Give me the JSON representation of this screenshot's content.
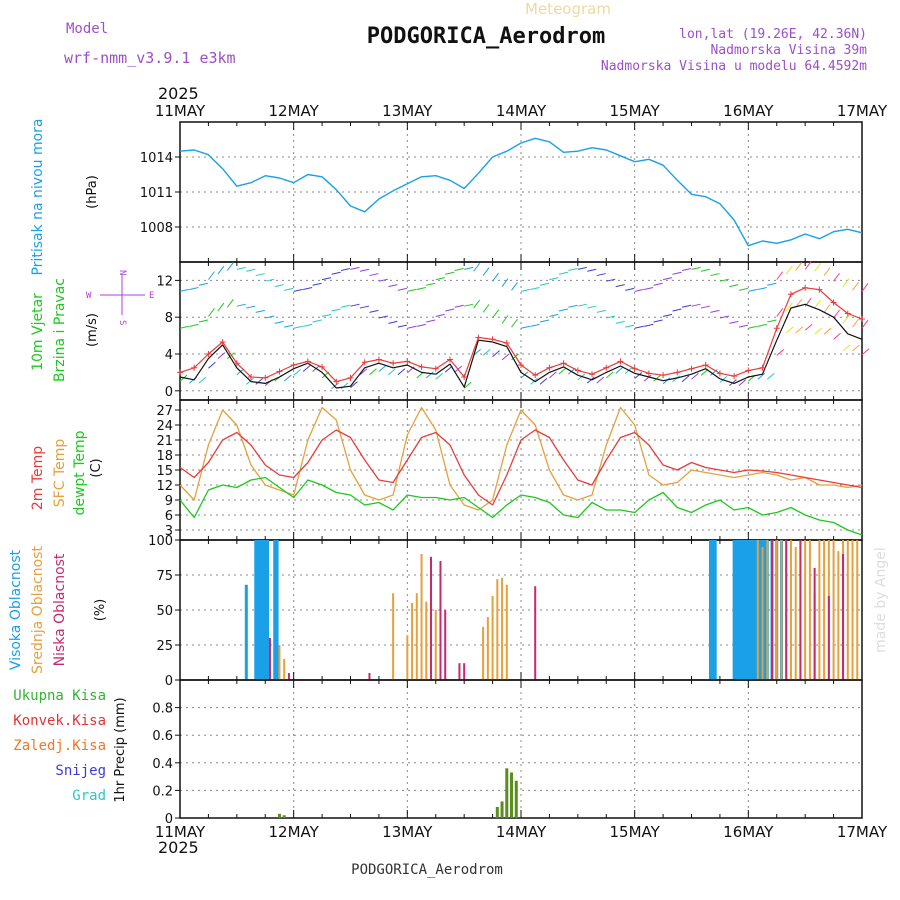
{
  "header": {
    "meteogram_label": "Meteogram",
    "station_title": "PODGORICA_Aerodrom",
    "model_label": "Model",
    "model_name": "wrf-nmm_v3.9.1  e3km",
    "lonlat": "lon,lat (19.26E, 42.36N)",
    "elevation": "Nadmorska Visina 39m",
    "model_elevation": "Nadmorska Visina u modelu 64.4592m",
    "footer_station": "PODGORICA_Aerodrom",
    "credit": "made by Angel",
    "year_top": "2025",
    "year_bottom": "2025"
  },
  "colors": {
    "pressure": "#1aa0e6",
    "temp2m": "#e83c3c",
    "sfc_temp": "#e6a03c",
    "dewpt": "#1ec81e",
    "high_cloud": "#1aa0e6",
    "mid_cloud": "#e6a03c",
    "low_cloud": "#c8286e",
    "total_precip": "#32b432",
    "conv_precip": "#e63232",
    "frozen_precip": "#f07828",
    "snow": "#3c3cdc",
    "hail": "#28c8c8",
    "wind_legend": "#b43cdc",
    "title_purple": "#9b4fc8"
  },
  "chart_data": [
    {
      "type": "line",
      "id": "pressure",
      "ylabel_left": "Pritisak na nivou mora",
      "ylabel_unit": "(hPa)",
      "ylim": [
        1005,
        1017
      ],
      "yticks": [
        1008,
        1011,
        1014
      ],
      "x_categories": [
        "11MAY",
        "12MAY",
        "13MAY",
        "14MAY",
        "15MAY",
        "16MAY",
        "17MAY"
      ],
      "x_hours": [
        0,
        3,
        6,
        9,
        12,
        15,
        18,
        21,
        24,
        27,
        30,
        33,
        36,
        39,
        42,
        45,
        48,
        51,
        54,
        57,
        60,
        63,
        66,
        69,
        72,
        75,
        78,
        81,
        84,
        87,
        90,
        93,
        96,
        99,
        102,
        105,
        108,
        111,
        114,
        117,
        120,
        123,
        126,
        129,
        132,
        135,
        138,
        141,
        144
      ],
      "series": [
        {
          "name": "MSLP",
          "values": [
            1014.5,
            1014.6,
            1014.2,
            1013.0,
            1011.5,
            1011.8,
            1012.4,
            1012.2,
            1011.8,
            1012.5,
            1012.3,
            1011.2,
            1009.8,
            1009.3,
            1010.4,
            1011.1,
            1011.7,
            1012.3,
            1012.4,
            1012.0,
            1011.3,
            1012.6,
            1014.0,
            1014.5,
            1015.2,
            1015.6,
            1015.3,
            1014.4,
            1014.5,
            1014.8,
            1014.6,
            1014.1,
            1013.6,
            1013.8,
            1013.3,
            1012.0,
            1010.8,
            1010.6,
            1010.0,
            1008.6,
            1006.4,
            1006.8,
            1006.6,
            1006.9,
            1007.4,
            1007.0,
            1007.6,
            1007.8,
            1007.5
          ]
        }
      ]
    },
    {
      "type": "line",
      "id": "wind",
      "ylabel_left_1": "10m Vjetar",
      "ylabel_left_2": "Brzina i Pravac",
      "ylabel_unit": "(m/s)",
      "ylim": [
        -1,
        14
      ],
      "yticks": [
        0,
        4,
        8,
        12
      ],
      "compass": {
        "n": "N",
        "s": "S",
        "e": "E",
        "w": "W"
      },
      "x_hours": [
        0,
        3,
        6,
        9,
        12,
        15,
        18,
        21,
        24,
        27,
        30,
        33,
        36,
        39,
        42,
        45,
        48,
        51,
        54,
        57,
        60,
        63,
        66,
        69,
        72,
        75,
        78,
        81,
        84,
        87,
        90,
        93,
        96,
        99,
        102,
        105,
        108,
        111,
        114,
        117,
        120,
        123,
        126,
        129,
        132,
        135,
        138,
        141,
        144
      ],
      "series": [
        {
          "name": "wind speed",
          "values": [
            1.5,
            1.2,
            3.5,
            5.0,
            2.5,
            1.0,
            0.8,
            1.5,
            2.4,
            3.0,
            2.0,
            0.3,
            0.5,
            2.5,
            3.0,
            2.5,
            2.8,
            2.0,
            1.8,
            2.9,
            0.4,
            5.5,
            5.3,
            4.8,
            2.0,
            1.0,
            2.0,
            2.6,
            1.7,
            1.2,
            2.0,
            2.7,
            1.9,
            1.5,
            1.1,
            1.4,
            1.8,
            2.4,
            1.3,
            0.8,
            1.5,
            1.8,
            5.5,
            9.0,
            9.4,
            8.8,
            8.0,
            6.2,
            5.6
          ]
        },
        {
          "name": "wind gust",
          "values": [
            2.0,
            2.5,
            4.0,
            5.3,
            3.0,
            1.5,
            1.4,
            2.1,
            2.8,
            3.2,
            2.6,
            1.0,
            1.4,
            3.1,
            3.4,
            3.0,
            3.2,
            2.6,
            2.4,
            3.4,
            1.5,
            5.8,
            5.6,
            5.2,
            2.8,
            1.7,
            2.5,
            3.0,
            2.2,
            1.8,
            2.5,
            3.2,
            2.4,
            1.9,
            1.7,
            2.0,
            2.4,
            2.8,
            1.9,
            1.6,
            2.2,
            2.5,
            6.8,
            10.5,
            11.2,
            11.0,
            9.6,
            8.4,
            7.8
          ]
        }
      ]
    },
    {
      "type": "line",
      "id": "temperature",
      "ylabel_2m": "2m Temp",
      "ylabel_sfc": "SFC Temp",
      "ylabel_dew": "dewpt Temp",
      "ylabel_unit": "(C)",
      "ylim": [
        1,
        29
      ],
      "yticks": [
        3,
        6,
        9,
        12,
        15,
        18,
        21,
        24,
        27
      ],
      "x_hours": [
        0,
        3,
        6,
        9,
        12,
        15,
        18,
        21,
        24,
        27,
        30,
        33,
        36,
        39,
        42,
        45,
        48,
        51,
        54,
        57,
        60,
        63,
        66,
        69,
        72,
        75,
        78,
        81,
        84,
        87,
        90,
        93,
        96,
        99,
        102,
        105,
        108,
        111,
        114,
        117,
        120,
        123,
        126,
        129,
        132,
        135,
        138,
        141,
        144
      ],
      "series": [
        {
          "name": "2m Temp",
          "values": [
            15.5,
            13.5,
            16.5,
            21.0,
            22.5,
            20.0,
            16.0,
            14.0,
            13.5,
            16.5,
            21.0,
            23.0,
            21.5,
            17.0,
            13.0,
            12.5,
            17.0,
            21.5,
            22.5,
            20.0,
            14.0,
            10.0,
            8.0,
            14.0,
            21.0,
            23.0,
            21.5,
            17.0,
            13.0,
            12.0,
            17.0,
            21.5,
            22.5,
            20.0,
            16.0,
            15.0,
            16.5,
            15.5,
            15.0,
            14.5,
            15.0,
            14.8,
            14.5,
            14.0,
            13.5,
            13.0,
            12.5,
            12.0,
            11.5
          ]
        },
        {
          "name": "SFC Temp",
          "values": [
            12.0,
            9.0,
            20.0,
            27.0,
            24.0,
            16.0,
            12.0,
            11.0,
            10.0,
            21.0,
            27.5,
            25.0,
            15.0,
            10.0,
            9.0,
            10.0,
            22.0,
            27.5,
            23.0,
            12.0,
            8.0,
            7.0,
            9.0,
            20.0,
            27.0,
            24.0,
            15.0,
            10.0,
            9.0,
            10.0,
            20.0,
            27.5,
            24.0,
            14.0,
            12.0,
            12.5,
            15.0,
            14.5,
            14.0,
            13.5,
            14.0,
            14.5,
            14.0,
            13.0,
            13.5,
            12.0,
            12.0,
            11.5,
            12.0
          ]
        },
        {
          "name": "dewpt Temp",
          "values": [
            9.0,
            5.5,
            11.0,
            12.0,
            11.5,
            13.0,
            13.5,
            11.5,
            9.5,
            13.0,
            12.0,
            10.5,
            10.0,
            8.0,
            8.5,
            7.0,
            10.0,
            9.5,
            9.5,
            9.0,
            9.5,
            7.5,
            5.5,
            8.0,
            10.0,
            9.5,
            8.5,
            6.0,
            5.5,
            8.5,
            7.0,
            7.0,
            6.5,
            9.0,
            10.5,
            7.5,
            6.5,
            8.0,
            9.0,
            7.0,
            7.5,
            6.0,
            6.5,
            7.5,
            6.0,
            5.0,
            4.5,
            3.0,
            2.0
          ]
        }
      ]
    },
    {
      "type": "bar",
      "id": "cloud",
      "ylabel_high": "Visoka Oblacnost",
      "ylabel_mid": "Srednja Oblacnost",
      "ylabel_low": "Niska Oblacnost",
      "ylabel_unit": "(%)",
      "ylim": [
        0,
        100
      ],
      "yticks": [
        0,
        25,
        50,
        75,
        100
      ],
      "series": [
        {
          "name": "Visoka Oblacnost",
          "hours": [
            14,
            16,
            16.5,
            17,
            17.5,
            18,
            18.5,
            20,
            20.5,
            112,
            112.5,
            113,
            117,
            117.5,
            118,
            118.5,
            119,
            119.5,
            120,
            120.5,
            121,
            121.5,
            122,
            122.5,
            123,
            123.5,
            124,
            125,
            126,
            127
          ],
          "values": [
            68,
            100,
            100,
            100,
            100,
            100,
            100,
            100,
            100,
            100,
            100,
            100,
            100,
            100,
            100,
            100,
            100,
            100,
            100,
            100,
            100,
            100,
            100,
            100,
            100,
            100,
            100,
            100,
            100,
            100
          ]
        },
        {
          "name": "Srednja Oblacnost",
          "hours": [
            21,
            22,
            45,
            48,
            49,
            50,
            51,
            52,
            54,
            64,
            65,
            66,
            67,
            68,
            69,
            122,
            123,
            124,
            125,
            126,
            127,
            128,
            129,
            130,
            131,
            132,
            133,
            134,
            135,
            136,
            137,
            138,
            139,
            140,
            141,
            142,
            143
          ],
          "values": [
            25,
            15,
            62,
            32,
            55,
            62,
            90,
            56,
            50,
            38,
            45,
            60,
            72,
            73,
            68,
            100,
            95,
            100,
            100,
            100,
            100,
            100,
            100,
            95,
            100,
            100,
            100,
            62,
            100,
            100,
            100,
            100,
            92,
            100,
            100,
            100,
            100
          ]
        },
        {
          "name": "Niska Oblacnost",
          "hours": [
            19,
            23,
            40,
            53,
            55,
            56,
            59,
            60,
            75,
            125,
            128,
            131,
            134,
            137,
            140
          ],
          "values": [
            30,
            5,
            5,
            88,
            85,
            50,
            12,
            12,
            67,
            100,
            100,
            100,
            80,
            60,
            90
          ]
        }
      ]
    },
    {
      "type": "bar",
      "id": "precip",
      "ylabel_unit": "1hr Precip (mm)",
      "legend": [
        "Ukupna Kisa",
        "Konvek.Kisa",
        "Zaledj.Kisa",
        "Snijeg",
        "Grad"
      ],
      "ylim": [
        0,
        1.0
      ],
      "yticks": [
        0,
        0.2,
        0.4,
        0.6,
        0.8
      ],
      "x_categories": [
        "11MAY",
        "12MAY",
        "13MAY",
        "14MAY",
        "15MAY",
        "16MAY",
        "17MAY"
      ],
      "series": [
        {
          "name": "Ukupna Kisa",
          "hours": [
            21,
            22,
            67,
            68,
            69,
            70,
            71
          ],
          "values": [
            0.03,
            0.02,
            0.08,
            0.12,
            0.36,
            0.33,
            0.27
          ]
        }
      ]
    }
  ]
}
